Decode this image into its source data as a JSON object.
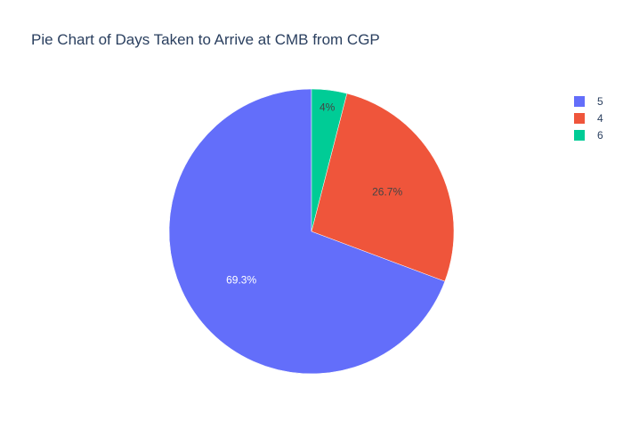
{
  "chart_data": {
    "type": "pie",
    "title": "Pie Chart of Days Taken to Arrive at CMB from CGP",
    "slices": [
      {
        "label": "5",
        "percent": 69.3,
        "percent_label": "69.3%",
        "color": "#636efa",
        "label_color": "#ffffff"
      },
      {
        "label": "4",
        "percent": 26.7,
        "percent_label": "26.7%",
        "color": "#ef553b",
        "label_color": "#444444"
      },
      {
        "label": "6",
        "percent": 4.0,
        "percent_label": "4%",
        "color": "#00cc96",
        "label_color": "#444444"
      }
    ],
    "legend_position": "top-right",
    "start_angle_deg": 90,
    "direction": "counterclockwise"
  }
}
